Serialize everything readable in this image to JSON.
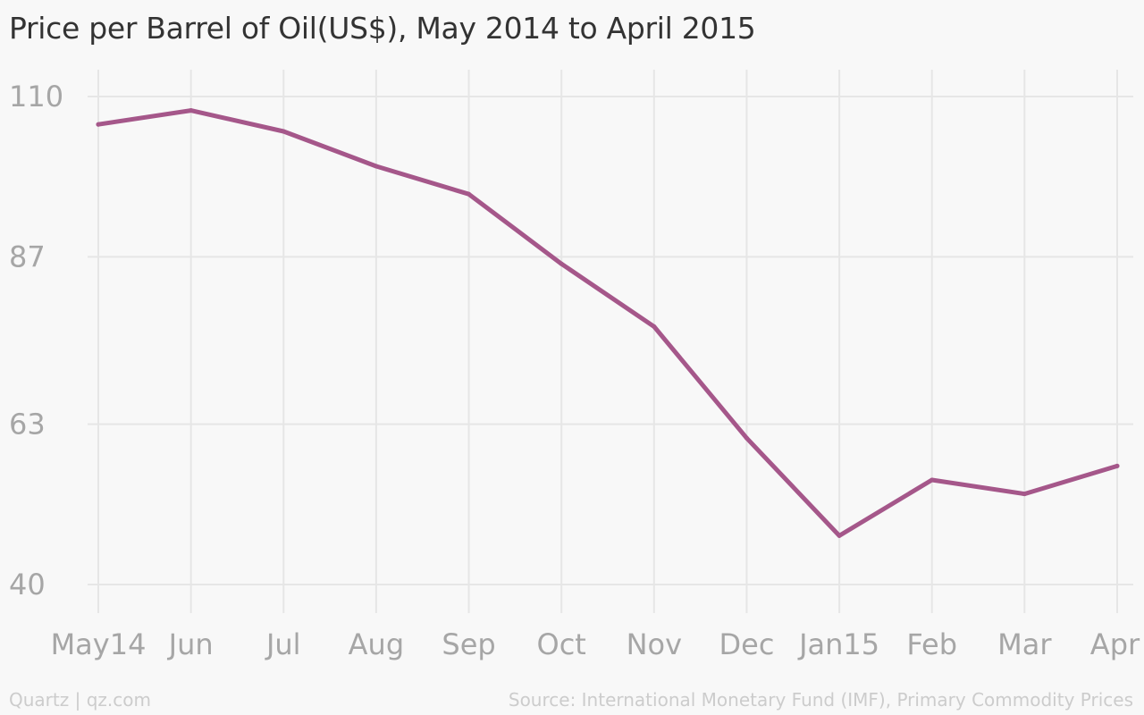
{
  "chart_data": {
    "type": "line",
    "title": "Price per Barrel of Oil(US$), May 2014 to April 2015",
    "xlabel": "",
    "ylabel": "",
    "categories": [
      "May14",
      "Jun",
      "Jul",
      "Aug",
      "Sep",
      "Oct",
      "Nov",
      "Dec",
      "Jan15",
      "Feb",
      "Mar",
      "Apr"
    ],
    "series": [
      {
        "values": [
          106,
          108,
          105,
          100,
          96,
          86,
          77,
          61,
          47,
          55,
          53,
          57
        ],
        "color": "#a5578a"
      }
    ],
    "yticks": [
      "110",
      "87",
      "63",
      "40"
    ],
    "ylim": [
      40,
      110
    ],
    "grid": true
  },
  "footer": {
    "credit": "Quartz | qz.com",
    "source": "Source: International Monetary Fund (IMF), Primary Commodity Prices"
  }
}
